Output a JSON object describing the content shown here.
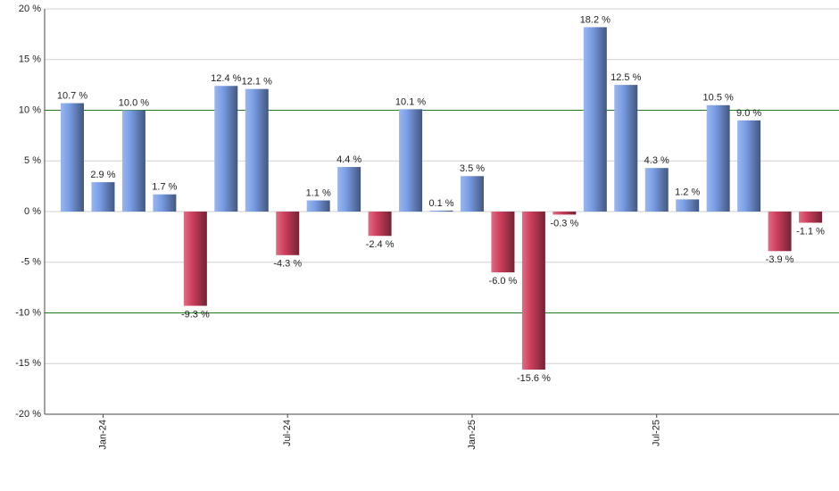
{
  "chart_data": {
    "type": "bar",
    "categories": [
      null,
      "Jan-24",
      null,
      null,
      null,
      null,
      null,
      "Jul-24",
      null,
      null,
      null,
      null,
      null,
      "Jan-25",
      null,
      null,
      null,
      null,
      null,
      "Jul-25",
      null,
      null,
      null,
      null,
      null
    ],
    "values": [
      10.7,
      2.9,
      10.0,
      1.7,
      -9.3,
      12.4,
      12.1,
      -4.3,
      1.1,
      4.4,
      -2.4,
      10.1,
      0.1,
      3.5,
      -6.0,
      -15.6,
      -0.3,
      18.2,
      12.5,
      4.3,
      1.2,
      10.5,
      9.0,
      -3.9,
      -1.1
    ],
    "value_labels": [
      "10.7 %",
      "2.9 %",
      "10.0 %",
      "1.7 %",
      "-9.3 %",
      "12.4 %",
      "12.1 %",
      "-4.3 %",
      "1.1 %",
      "4.4 %",
      "-2.4 %",
      "10.1 %",
      "0.1 %",
      "3.5 %",
      "-6.0 %",
      "-15.6 %",
      "-0.3 %",
      "18.2 %",
      "12.5 %",
      "4.3 %",
      "1.2 %",
      "10.5 %",
      "9.0 %",
      "-3.9 %",
      "-1.1 %"
    ],
    "color": "#7a9ee6",
    "negative_color": "#d0405e",
    "ylim": [
      -20,
      20
    ],
    "yticks": [
      {
        "value": -20,
        "label": "-20 %"
      },
      {
        "value": -15,
        "label": "-15 %"
      },
      {
        "value": -10,
        "label": "-10 %"
      },
      {
        "value": -5,
        "label": "-5 %"
      },
      {
        "value": 0,
        "label": "0 %"
      },
      {
        "value": 5,
        "label": "5 %"
      },
      {
        "value": 10,
        "label": "10 %"
      },
      {
        "value": 15,
        "label": "15 %"
      },
      {
        "value": 20,
        "label": "20 %"
      }
    ],
    "reference_lines": [
      10,
      -10
    ],
    "reference_color": "#1f7a1f",
    "grid": true
  }
}
